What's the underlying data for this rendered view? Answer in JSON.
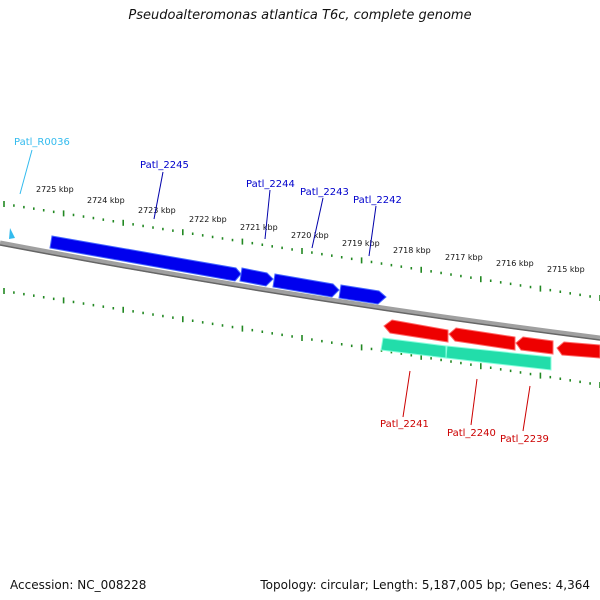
{
  "title": "Pseudoalteromonas atlantica T6c, complete genome",
  "footer": {
    "accession": "Accession: NC_008228",
    "topology": "Topology: circular; Length: 5,187,005 bp; Genes: 4,364"
  },
  "ticks": [
    "2725 kbp",
    "2724 kbp",
    "2723 kbp",
    "2722 kbp",
    "2721 kbp",
    "2720 kbp",
    "2719 kbp",
    "2718 kbp",
    "2717 kbp",
    "2716 kbp",
    "2715 kbp"
  ],
  "gene_labels": {
    "forward": [
      "Patl_2245",
      "Patl_2244",
      "Patl_2243",
      "Patl_2242"
    ],
    "reverse": [
      "Patl_2241",
      "Patl_2240",
      "Patl_2239"
    ],
    "rna": [
      "Patl_R0036"
    ]
  },
  "colors": {
    "forward": "#0000dd",
    "reverse": "#dd0000",
    "rna": "#33bbee",
    "feature": "#22ddaa",
    "ticks": "#228822",
    "backbone": "#808080"
  }
}
